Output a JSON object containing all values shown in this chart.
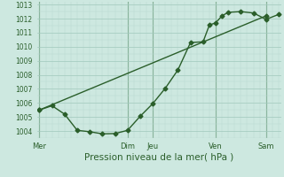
{
  "xlabel": "Pression niveau de la mer( hPa )",
  "bg_color": "#cde8e0",
  "grid_major_color": "#a0c8bc",
  "grid_minor_color": "#b8d8d0",
  "line_color": "#2a5e2a",
  "vline_color": "#5a8a5a",
  "ylim": [
    1003.5,
    1013.2
  ],
  "yticks": [
    1004,
    1005,
    1006,
    1007,
    1008,
    1009,
    1010,
    1011,
    1012,
    1013
  ],
  "day_labels": [
    "Mer",
    "Dim",
    "Jeu",
    "Ven",
    "Sam"
  ],
  "day_positions": [
    0,
    3.5,
    4.5,
    7.0,
    9.0
  ],
  "xlim": [
    -0.1,
    9.6
  ],
  "line1_x": [
    0.0,
    0.5,
    1.0,
    1.5,
    2.0,
    2.5,
    3.0,
    3.5,
    4.0,
    4.5,
    5.0,
    5.5,
    6.0,
    6.5,
    6.75,
    7.0,
    7.25,
    7.5,
    8.0,
    8.5,
    9.0,
    9.5
  ],
  "line1_y": [
    1005.5,
    1005.8,
    1005.2,
    1004.05,
    1003.95,
    1003.8,
    1003.82,
    1004.05,
    1005.05,
    1005.95,
    1007.05,
    1008.35,
    1010.3,
    1010.35,
    1011.55,
    1011.7,
    1012.2,
    1012.45,
    1012.5,
    1012.4,
    1011.95,
    1012.3
  ],
  "line2_x": [
    0.0,
    9.0
  ],
  "line2_y": [
    1005.5,
    1012.2
  ],
  "marker_size": 2.5,
  "line_width": 1.0,
  "xlabel_fontsize": 7.5,
  "tick_fontsize": 5.5
}
